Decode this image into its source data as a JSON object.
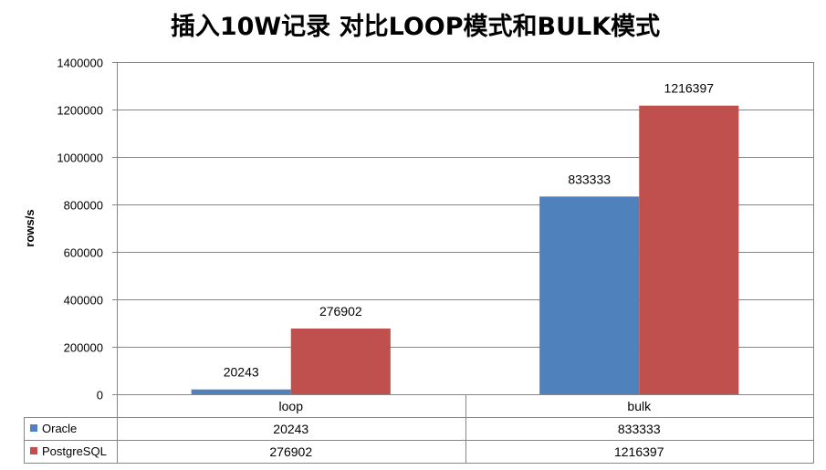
{
  "chart_data": {
    "type": "bar",
    "title": "插入10W记录 对比LOOP模式和BULK模式",
    "xlabel": "",
    "ylabel": "rows/s",
    "ylim": [
      0,
      1400000
    ],
    "yticks": [
      0,
      200000,
      400000,
      600000,
      800000,
      1000000,
      1200000,
      1400000
    ],
    "ytick_labels": [
      "0",
      "200000",
      "400000",
      "600000",
      "800000",
      "1000000",
      "1200000",
      "1400000"
    ],
    "categories": [
      "loop",
      "bulk"
    ],
    "series": [
      {
        "name": "Oracle",
        "values": [
          20243,
          833333
        ],
        "labels": [
          "20243",
          "833333"
        ],
        "color": "#4F81BD"
      },
      {
        "name": "PostgreSQL",
        "values": [
          276902,
          1216397
        ],
        "labels": [
          "276902",
          "1216397"
        ],
        "color": "#C0504D"
      }
    ],
    "grid": true,
    "legend": "data-table-bottom"
  }
}
